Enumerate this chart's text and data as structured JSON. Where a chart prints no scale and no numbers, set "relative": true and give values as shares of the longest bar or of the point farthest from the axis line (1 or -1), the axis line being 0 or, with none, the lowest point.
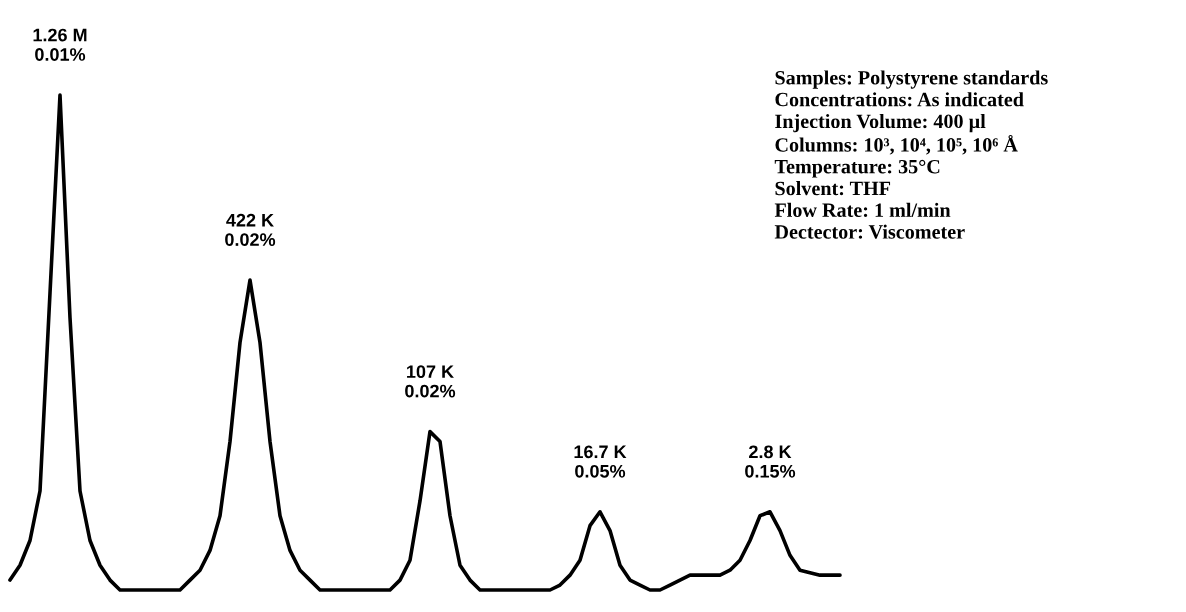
{
  "chart_data": {
    "type": "line",
    "relative": true,
    "marker": "none",
    "line_style": "solid",
    "categories": [
      null,
      null,
      null,
      null,
      null,
      null,
      null,
      null,
      null,
      null,
      null,
      null,
      null,
      null,
      null,
      null,
      null,
      null,
      null,
      null,
      null,
      null,
      null,
      null,
      null,
      null,
      null,
      null,
      null,
      null,
      null,
      null,
      null,
      null,
      null,
      null,
      null,
      null,
      null,
      null,
      null,
      null,
      null,
      null,
      null,
      null,
      null,
      null,
      null,
      null,
      null,
      null,
      null,
      null,
      null,
      null,
      null,
      null,
      null,
      null,
      null,
      null,
      null,
      null,
      null,
      null,
      null,
      null,
      null,
      null,
      null,
      null,
      null,
      null,
      null,
      null,
      null,
      null,
      null,
      null,
      null,
      null,
      null,
      null
    ],
    "series": [
      {
        "color": "#000000",
        "values": [
          0.02,
          0.05,
          0.1,
          0.2,
          0.6,
          1.0,
          0.55,
          0.2,
          0.1,
          0.05,
          0.02,
          0,
          0,
          0,
          0,
          0,
          0,
          0,
          0.02,
          0.04,
          0.08,
          0.15,
          0.3,
          0.5,
          0.626,
          0.5,
          0.3,
          0.15,
          0.08,
          0.04,
          0.02,
          0,
          0,
          0,
          0,
          0,
          0,
          0,
          0,
          0.02,
          0.06,
          0.18,
          0.32,
          0.3,
          0.15,
          0.05,
          0.02,
          0,
          0,
          0,
          0,
          0,
          0,
          0,
          0,
          0.01,
          0.03,
          0.06,
          0.13,
          0.158,
          0.12,
          0.05,
          0.02,
          0.01,
          0,
          0,
          0.01,
          0.02,
          0.03,
          0.03,
          0.03,
          0.03,
          0.04,
          0.06,
          0.1,
          0.15,
          0.158,
          0.12,
          0.07,
          0.04,
          0.035,
          0.03,
          0.03,
          0.03
        ]
      }
    ],
    "annotations": [
      "1.26 M\n0.01%",
      "422 K\n0.02%",
      "107 K\n0.02%",
      "16.7 K\n0.05%",
      "2.8 K\n0.15%",
      "Samples: Polystyrene standards\nConcentrations: As indicated\nInjection Volume: 400 µl\nColumns: 10³, 10⁴, 10⁵, 10⁶ Å\nTemperature: 35°C\nSolvent: THF\nFlow Rate: 1 ml/min\nDectector: Viscometer"
    ]
  }
}
